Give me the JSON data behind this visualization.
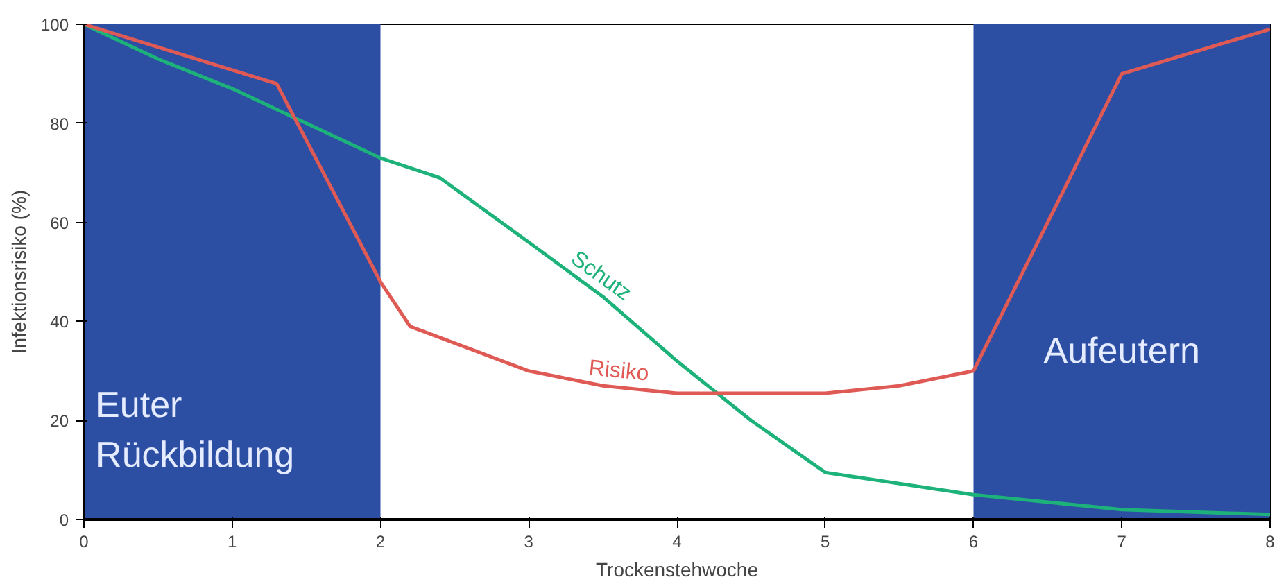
{
  "chart_data": {
    "type": "line",
    "xlabel": "Trockenstehwoche",
    "ylabel": "Infektionsrisiko (%)",
    "xlim": [
      0,
      8
    ],
    "ylim": [
      0,
      100
    ],
    "xticks": [
      0,
      1,
      2,
      3,
      4,
      5,
      6,
      7,
      8
    ],
    "yticks": [
      0,
      20,
      40,
      60,
      80,
      100
    ],
    "grid": false,
    "marker": "none",
    "line_style": "solid",
    "series": [
      {
        "name": "Schutz",
        "color": "#1db27a",
        "x": [
          0,
          0.5,
          1,
          1.5,
          2,
          2.4,
          3,
          3.5,
          4,
          4.5,
          5,
          6,
          7,
          8
        ],
        "values": [
          100,
          93,
          87,
          80,
          73,
          69,
          56,
          45,
          32,
          20,
          9.5,
          5,
          2,
          1
        ]
      },
      {
        "name": "Risiko",
        "color": "#e05a55",
        "x": [
          0,
          1.3,
          2,
          2.2,
          3,
          3.5,
          4,
          5,
          5.5,
          6,
          7,
          8
        ],
        "values": [
          100,
          88,
          48,
          39,
          30,
          27,
          25.5,
          25.5,
          27,
          30,
          90,
          99
        ]
      }
    ],
    "bands": [
      {
        "axis": "x",
        "from": 0,
        "to": 2,
        "label": "Euter\nRückbildung",
        "color": "#2d4fa3"
      },
      {
        "axis": "x",
        "from": 6,
        "to": 8,
        "label": "Aufeutern",
        "color": "#2d4fa3"
      }
    ]
  }
}
